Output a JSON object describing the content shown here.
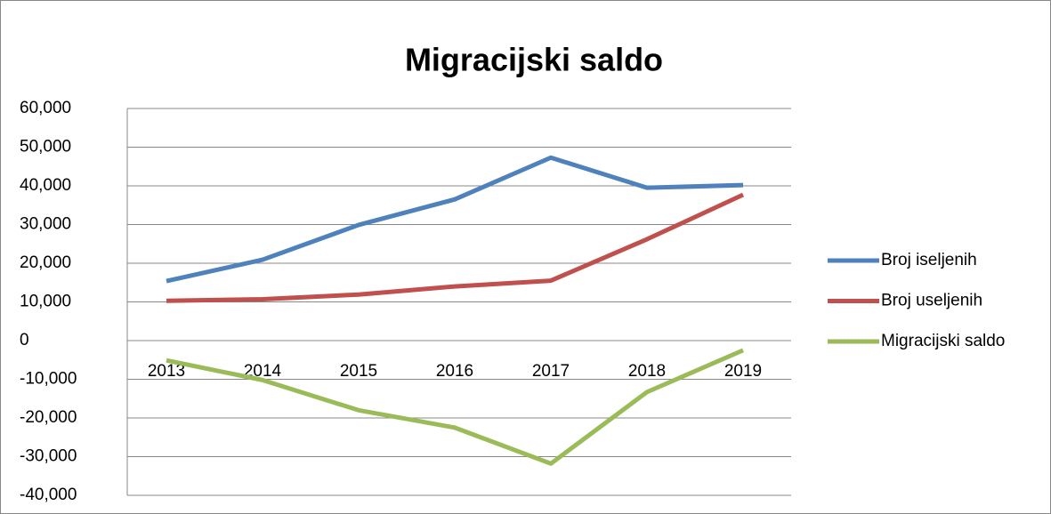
{
  "chart_data": {
    "type": "line",
    "title": "Migracijski saldo",
    "categories": [
      "2013",
      "2014",
      "2015",
      "2016",
      "2017",
      "2018",
      "2019"
    ],
    "series": [
      {
        "name": "Broj iseljenih",
        "color": "#4f81bd",
        "values": [
          15400,
          20900,
          29900,
          36500,
          47300,
          39500,
          40200
        ]
      },
      {
        "name": "Broj useljenih",
        "color": "#c0504d",
        "values": [
          10300,
          10700,
          11900,
          14000,
          15500,
          26200,
          37700
        ]
      },
      {
        "name": "Migracijski saldo",
        "color": "#9bbb59",
        "values": [
          -5100,
          -10200,
          -18000,
          -22500,
          -31800,
          -13300,
          -2500
        ]
      }
    ],
    "ylim": [
      -40000,
      60000
    ],
    "yticks": [
      {
        "value": -40000,
        "label": "-40,000"
      },
      {
        "value": -30000,
        "label": "-30,000"
      },
      {
        "value": -20000,
        "label": "-20,000"
      },
      {
        "value": -10000,
        "label": "-10,000"
      },
      0,
      {
        "value": 10000,
        "label": "10,000"
      },
      {
        "value": 20000,
        "label": "20,000"
      },
      {
        "value": 30000,
        "label": "30,000"
      },
      {
        "value": 40000,
        "label": "40,000"
      },
      {
        "value": 50000,
        "label": "50,000"
      },
      {
        "value": 60000,
        "label": "60,000"
      }
    ],
    "grid": true,
    "legend": "right"
  }
}
